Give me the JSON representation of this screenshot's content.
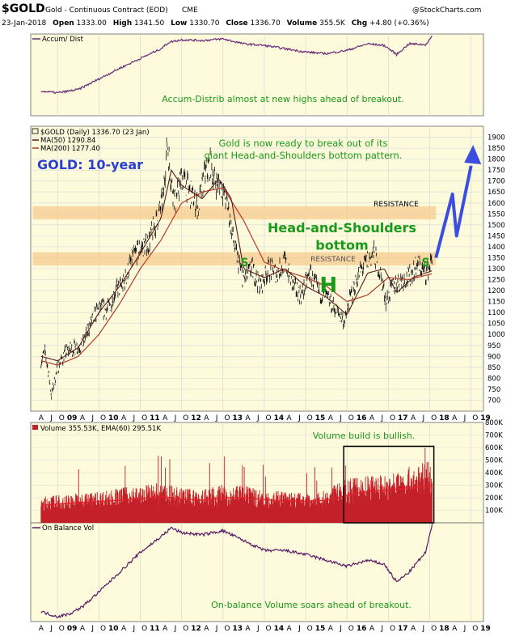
{
  "header": {
    "symbol": "$GOLD",
    "description": "Gold - Continuous Contract (EOD)",
    "exchange": "CME",
    "copyright": "@StockCharts.com",
    "date": "23-Jan-2018",
    "open_label": "Open",
    "open": "1333.00",
    "high_label": "High",
    "high": "1341.50",
    "low_label": "Low",
    "low": "1330.70",
    "close_label": "Close",
    "close": "1336.70",
    "volume_label": "Volume",
    "volume": "355.5K",
    "chg_label": "Chg",
    "chg": "+4.80 (+0.36%)"
  },
  "colors": {
    "panel_bg": "#fdfbdb",
    "grid": "#d8d8d8",
    "price_bar": "#111111",
    "ma50": "#5b1a1a",
    "ma200": "#b53a2a",
    "accum": "#6b2a7a",
    "obv": "#5a1a66",
    "volume_bar": "#c3202a",
    "annotation_green": "#1a9a1a",
    "annotation_blue": "#2b3fd0",
    "resistance_band": "#f6c78a",
    "arrow": "#3a4fe0"
  },
  "x_axis": {
    "labels": [
      "A",
      "J",
      "O",
      "09",
      "A",
      "J",
      "O",
      "10",
      "A",
      "J",
      "O",
      "11",
      "A",
      "J",
      "O",
      "12",
      "A",
      "J",
      "O",
      "13",
      "A",
      "J",
      "O",
      "14",
      "A",
      "J",
      "O",
      "15",
      "A",
      "J",
      "O",
      "16",
      "A",
      "J",
      "O",
      "17",
      "A",
      "J",
      "O",
      "18",
      "A",
      "J",
      "O",
      "19"
    ]
  },
  "chart_data": [
    {
      "type": "line",
      "panel": "accum-dist",
      "legend": "Accum/ Dist",
      "annotation": "Accum-Distrib almost at new highs ahead of breakout.",
      "x": [
        2008.6,
        2009.0,
        2009.5,
        2010.0,
        2010.5,
        2011.0,
        2011.5,
        2011.7,
        2012.0,
        2012.5,
        2013.0,
        2013.5,
        2014.0,
        2014.5,
        2015.0,
        2015.5,
        2016.0,
        2016.5,
        2016.9,
        2017.2,
        2017.5,
        2017.9,
        2018.06
      ],
      "values": [
        0.3,
        0.28,
        0.32,
        0.45,
        0.58,
        0.7,
        0.82,
        0.9,
        0.93,
        0.92,
        0.94,
        0.88,
        0.86,
        0.82,
        0.78,
        0.76,
        0.8,
        0.88,
        0.86,
        0.75,
        0.88,
        0.87,
        0.97
      ],
      "ylim": [
        0,
        1
      ]
    },
    {
      "type": "line",
      "panel": "price",
      "title": "GOLD: 10-year",
      "legend": [
        "$GOLD (Daily) 1336.70 (23 Jan)",
        "MA(50) 1290.84",
        "MA(200) 1277.40"
      ],
      "ylim": [
        650,
        1950
      ],
      "yticks": [
        700,
        750,
        800,
        850,
        900,
        950,
        1000,
        1050,
        1100,
        1150,
        1200,
        1250,
        1300,
        1350,
        1400,
        1450,
        1500,
        1550,
        1600,
        1650,
        1700,
        1750,
        1800,
        1850,
        1900
      ],
      "series": [
        {
          "name": "$GOLD (Daily) 1336.70 (23 Jan)",
          "x": [
            2008.6,
            2008.7,
            2008.8,
            2008.85,
            2009.0,
            2009.2,
            2009.4,
            2009.6,
            2009.8,
            2010.0,
            2010.2,
            2010.4,
            2010.6,
            2010.8,
            2011.0,
            2011.2,
            2011.4,
            2011.55,
            2011.65,
            2011.75,
            2011.85,
            2012.0,
            2012.2,
            2012.4,
            2012.55,
            2012.7,
            2012.8,
            2012.95,
            2013.1,
            2013.3,
            2013.5,
            2013.7,
            2013.9,
            2014.1,
            2014.3,
            2014.5,
            2014.7,
            2014.9,
            2015.1,
            2015.3,
            2015.5,
            2015.7,
            2015.95,
            2016.1,
            2016.3,
            2016.5,
            2016.65,
            2016.8,
            2016.95,
            2017.1,
            2017.3,
            2017.5,
            2017.7,
            2017.9,
            2018.06
          ],
          "values": [
            880,
            920,
            800,
            720,
            850,
            920,
            940,
            950,
            1050,
            1120,
            1110,
            1200,
            1230,
            1350,
            1390,
            1420,
            1520,
            1620,
            1880,
            1700,
            1600,
            1720,
            1650,
            1580,
            1720,
            1780,
            1700,
            1680,
            1600,
            1380,
            1250,
            1300,
            1220,
            1300,
            1280,
            1330,
            1220,
            1180,
            1280,
            1200,
            1170,
            1120,
            1060,
            1180,
            1280,
            1340,
            1370,
            1280,
            1150,
            1220,
            1250,
            1260,
            1320,
            1280,
            1336.7
          ]
        },
        {
          "name": "MA(50) 1290.84",
          "x": [
            2008.6,
            2009.0,
            2009.5,
            2010.0,
            2010.5,
            2011.0,
            2011.5,
            2011.75,
            2012.0,
            2012.5,
            2012.9,
            2013.2,
            2013.5,
            2014.0,
            2014.5,
            2015.0,
            2015.5,
            2016.0,
            2016.5,
            2016.9,
            2017.2,
            2017.6,
            2018.06
          ],
          "values": [
            900,
            880,
            940,
            1100,
            1220,
            1370,
            1530,
            1750,
            1680,
            1620,
            1710,
            1620,
            1300,
            1260,
            1300,
            1220,
            1170,
            1090,
            1280,
            1300,
            1190,
            1260,
            1290.84
          ]
        },
        {
          "name": "MA(200) 1277.40",
          "x": [
            2008.6,
            2009.0,
            2009.5,
            2010.0,
            2010.5,
            2011.0,
            2011.5,
            2012.0,
            2012.5,
            2013.0,
            2013.5,
            2014.0,
            2014.5,
            2015.0,
            2015.5,
            2016.0,
            2016.5,
            2017.0,
            2017.5,
            2018.06
          ],
          "values": [
            880,
            860,
            900,
            1000,
            1140,
            1300,
            1430,
            1600,
            1650,
            1670,
            1520,
            1330,
            1290,
            1260,
            1220,
            1150,
            1180,
            1260,
            1250,
            1277.4
          ]
        }
      ],
      "annotations": {
        "top_note": "Gold is now ready to break out of its giant Head-and-Shoulders bottom pattern.",
        "resistance_upper": "RESISTANCE",
        "resistance_lower": "RESISTANCE",
        "pattern": "Head-and-Shoulders bottom",
        "left_shoulder": "S",
        "head": "H",
        "right_shoulder": "S"
      },
      "resistance_bands": [
        [
          1525,
          1585
        ],
        [
          1315,
          1375
        ]
      ]
    },
    {
      "type": "bar",
      "panel": "volume",
      "legend": "Volume 355.53K, EMA(60) 295.51K",
      "annotation": "Volume build is bullish.",
      "ylim": [
        0,
        800000
      ],
      "yticks": [
        "100K",
        "200K",
        "300K",
        "400K",
        "500K",
        "600K",
        "700K",
        "800K"
      ],
      "x": [
        2008.6,
        2009.0,
        2009.5,
        2010.0,
        2010.5,
        2011.0,
        2011.5,
        2012.0,
        2012.5,
        2013.0,
        2013.5,
        2014.0,
        2014.5,
        2015.0,
        2015.5,
        2016.0,
        2016.5,
        2017.0,
        2017.5,
        2018.06
      ],
      "values": [
        150000,
        160000,
        170000,
        180000,
        200000,
        210000,
        230000,
        200000,
        190000,
        220000,
        210000,
        190000,
        180000,
        170000,
        190000,
        250000,
        270000,
        280000,
        320000,
        355530
      ],
      "ema": [
        140000,
        150000,
        160000,
        170000,
        180000,
        190000,
        210000,
        190000,
        180000,
        200000,
        200000,
        185000,
        175000,
        170000,
        180000,
        220000,
        250000,
        260000,
        280000,
        295510
      ]
    },
    {
      "type": "line",
      "panel": "on-balance-volume",
      "legend": "On Balance Vol",
      "annotation": "On-balance Volume soars ahead of breakout.",
      "x": [
        2008.6,
        2009.0,
        2009.3,
        2009.6,
        2010.0,
        2010.5,
        2011.0,
        2011.5,
        2011.75,
        2012.0,
        2012.5,
        2013.0,
        2013.3,
        2013.7,
        2014.0,
        2014.5,
        2015.0,
        2015.5,
        2016.0,
        2016.5,
        2016.9,
        2017.2,
        2017.5,
        2017.9,
        2018.06
      ],
      "values": [
        0.1,
        0.05,
        0.08,
        0.15,
        0.3,
        0.5,
        0.7,
        0.86,
        0.95,
        0.9,
        0.88,
        0.92,
        0.86,
        0.78,
        0.72,
        0.72,
        0.68,
        0.62,
        0.56,
        0.62,
        0.58,
        0.4,
        0.5,
        0.7,
        0.98
      ],
      "ylim": [
        0,
        1
      ]
    }
  ]
}
